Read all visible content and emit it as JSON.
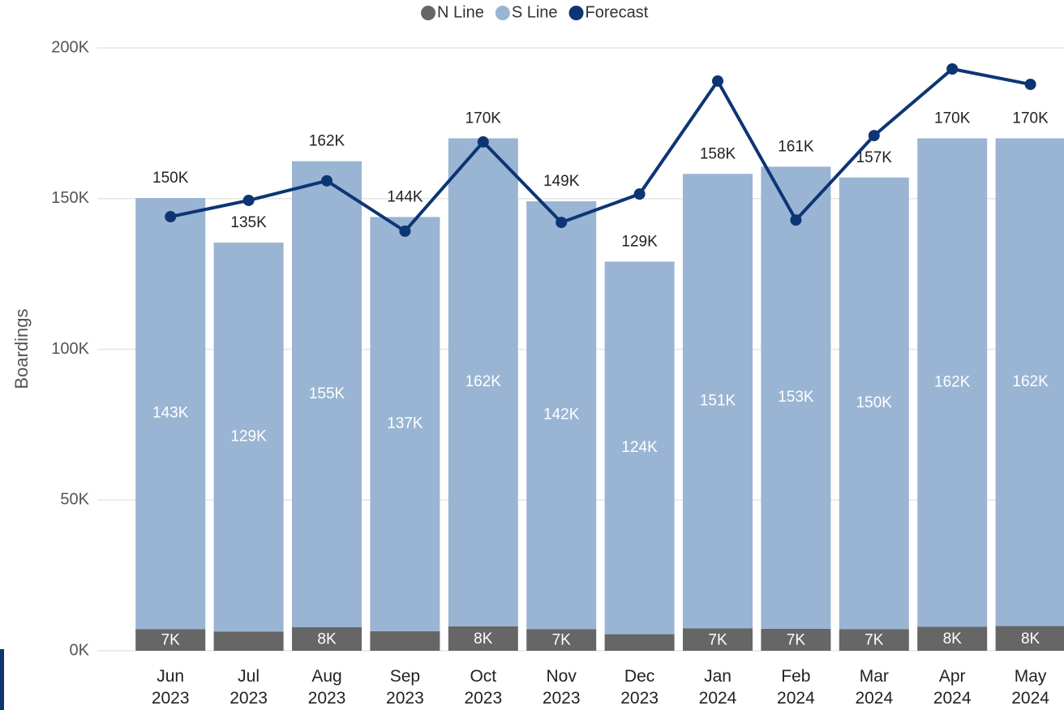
{
  "chart_data": {
    "type": "stacked-bar-line",
    "y_axis_label": "Boardings",
    "categories": [
      "Jun\n2023",
      "Jul\n2023",
      "Aug\n2023",
      "Sep\n2023",
      "Oct\n2023",
      "Nov\n2023",
      "Dec\n2023",
      "Jan\n2024",
      "Feb\n2024",
      "Mar\n2024",
      "Apr\n2024",
      "May\n2024"
    ],
    "series": [
      {
        "name": "N Line",
        "type": "bar",
        "color": "#666666",
        "values": [
          7200,
          6400,
          7800,
          6500,
          8100,
          7200,
          5500,
          7400,
          7300,
          7200,
          8000,
          8200
        ],
        "value_labels": [
          "7K",
          null,
          "8K",
          null,
          "8K",
          "7K",
          null,
          "7K",
          "7K",
          "7K",
          "8K",
          "8K"
        ]
      },
      {
        "name": "S Line",
        "type": "bar",
        "color": "#9ab5d3",
        "values": [
          143000,
          129000,
          154600,
          137400,
          161900,
          141900,
          123600,
          150800,
          153300,
          149800,
          162000,
          161800
        ],
        "value_labels": [
          "143K",
          "129K",
          "155K",
          "137K",
          "162K",
          "142K",
          "124K",
          "151K",
          "153K",
          "150K",
          "162K",
          "162K"
        ]
      },
      {
        "name": "Forecast",
        "type": "line",
        "color": "#0d3575",
        "values": [
          144000,
          149400,
          155900,
          139200,
          168800,
          142100,
          151500,
          189000,
          142900,
          170900,
          193000,
          187900
        ]
      }
    ],
    "total_labels": [
      "150K",
      "135K",
      "162K",
      "144K",
      "170K",
      "149K",
      "129K",
      "158K",
      "161K",
      "157K",
      "170K",
      "170K"
    ],
    "ylim": [
      0,
      200000
    ],
    "yticks": [
      {
        "value": 0,
        "label": "0K"
      },
      {
        "value": 50000,
        "label": "50K"
      },
      {
        "value": 100000,
        "label": "100K"
      },
      {
        "value": 150000,
        "label": "150K"
      },
      {
        "value": 200000,
        "label": "200K"
      }
    ],
    "grid": true,
    "legend": "top"
  }
}
